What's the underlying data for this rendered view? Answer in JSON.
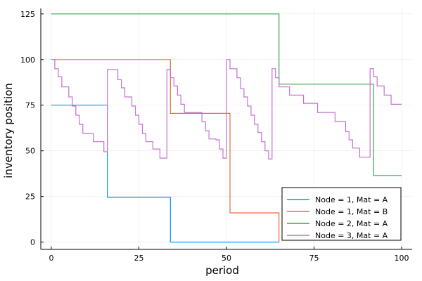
{
  "chart_data": {
    "type": "line",
    "step": true,
    "xlabel": "period",
    "ylabel": "inventory position",
    "xlim": [
      -3,
      103
    ],
    "ylim": [
      -4,
      128
    ],
    "xticks": [
      0,
      25,
      50,
      75,
      100
    ],
    "yticks": [
      0,
      25,
      50,
      75,
      100,
      125
    ],
    "grid": true,
    "legend_position": "bottom-right",
    "series": [
      {
        "name": "Node = 1, Mat = A",
        "color": "#009AFA",
        "x": [
          0,
          16,
          34,
          65
        ],
        "y": [
          75,
          24.5,
          0,
          0
        ]
      },
      {
        "name": "Node = 1, Mat = B",
        "color": "#E36F47",
        "x": [
          0,
          34,
          51,
          65
        ],
        "y": [
          100,
          70.5,
          16,
          0
        ]
      },
      {
        "name": "Node = 2, Mat = A",
        "color": "#3EA44E",
        "x": [
          0,
          65,
          92,
          100
        ],
        "y": [
          125,
          86.5,
          36.5,
          36.5
        ]
      },
      {
        "name": "Node = 3, Mat = A",
        "color": "#C371D2",
        "x": [
          0,
          1,
          2,
          3,
          5,
          6,
          7,
          8,
          9,
          12,
          15,
          16,
          19,
          20,
          21,
          23,
          24,
          25,
          26,
          27,
          29,
          31,
          33,
          34,
          35,
          36,
          37,
          38,
          43,
          44,
          45,
          47,
          48,
          49,
          50,
          51,
          53,
          54,
          55,
          56,
          57,
          58,
          59,
          60,
          61,
          62,
          63,
          64,
          65,
          68,
          72,
          76,
          81,
          84,
          85,
          86,
          88,
          91,
          92,
          93,
          95,
          97,
          99,
          100
        ],
        "y": [
          100,
          95,
          90.5,
          85,
          79.5,
          74.5,
          69.5,
          64.5,
          59.5,
          55,
          49.5,
          94.5,
          89,
          84.5,
          79.5,
          74.5,
          69.5,
          64.5,
          59.5,
          55,
          51,
          46,
          94.5,
          90,
          85.5,
          80.5,
          75.5,
          71,
          66,
          61,
          56.5,
          56,
          51,
          46,
          100,
          95,
          90,
          84,
          79.5,
          74.5,
          69.5,
          64.5,
          60,
          55,
          50,
          45.5,
          95,
          90,
          85,
          80.5,
          76,
          71,
          66,
          60.5,
          56,
          51.5,
          46.5,
          95,
          90.5,
          85.5,
          80.5,
          75.5,
          75.5,
          75.5
        ]
      }
    ]
  }
}
